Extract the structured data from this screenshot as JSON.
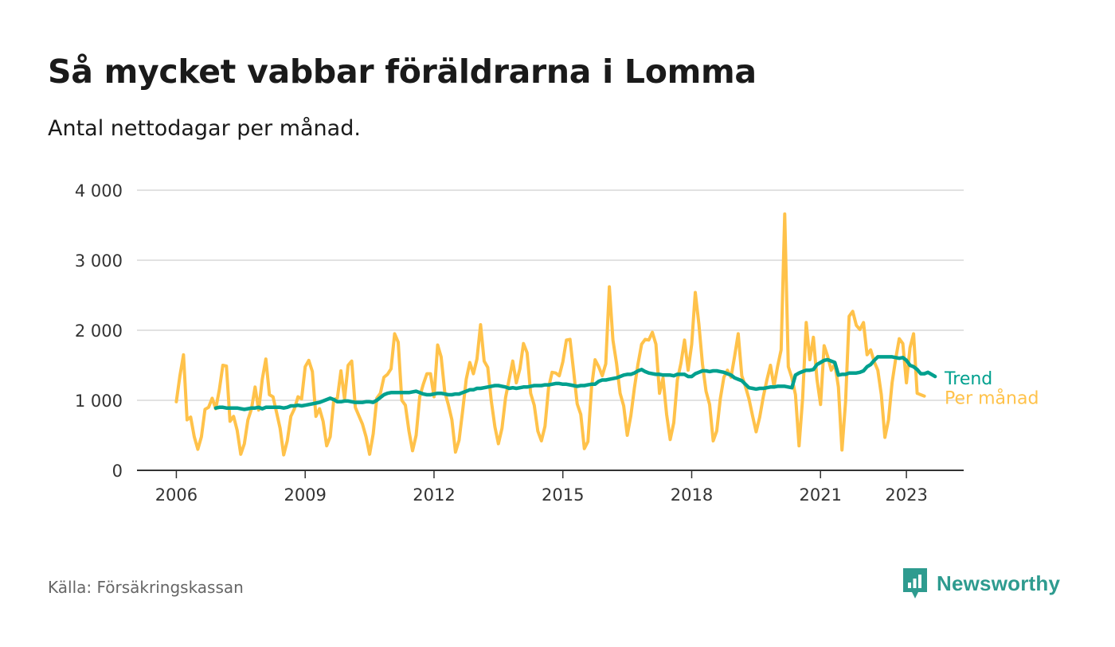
{
  "title": "Så mycket vabbar föräldrarna i Lomma",
  "subtitle": "Antal nettodagar per månad.",
  "source": "Källa: Försäkringskassan",
  "brand": "Newsworthy",
  "colors": {
    "monthly": "#ffc24a",
    "trend": "#00a08e",
    "grid": "#d9d9d9",
    "axis": "#333333",
    "brand": "#2e9b8f"
  },
  "chart_data": {
    "type": "line",
    "title": "Så mycket vabbar föräldrarna i Lomma",
    "xlabel": "",
    "ylabel": "",
    "xlim": [
      "2005-02-01",
      "2024-05-01"
    ],
    "ylim": [
      0,
      4000
    ],
    "y_ticks": [
      {
        "value": 0,
        "label": "0"
      },
      {
        "value": 1000,
        "label": "1 000"
      },
      {
        "value": 2000,
        "label": "2 000"
      },
      {
        "value": 3000,
        "label": "3 000"
      },
      {
        "value": 4000,
        "label": "4 000"
      }
    ],
    "x_ticks": [
      {
        "date": "2006-01-01",
        "label": "2006"
      },
      {
        "date": "2009-01-01",
        "label": "2009"
      },
      {
        "date": "2012-01-01",
        "label": "2012"
      },
      {
        "date": "2015-01-01",
        "label": "2015"
      },
      {
        "date": "2018-01-01",
        "label": "2018"
      },
      {
        "date": "2021-01-01",
        "label": "2021"
      },
      {
        "date": "2023-01-01",
        "label": "2023"
      }
    ],
    "grid": true,
    "series": [
      {
        "name": "Per månad",
        "start": "2006-01",
        "values": [
          980,
          1350,
          1650,
          720,
          760,
          480,
          300,
          480,
          870,
          900,
          1030,
          880,
          1150,
          1500,
          1490,
          700,
          770,
          570,
          230,
          380,
          720,
          880,
          1190,
          860,
          1300,
          1590,
          1080,
          1050,
          830,
          600,
          220,
          420,
          770,
          880,
          1050,
          1020,
          1480,
          1570,
          1410,
          770,
          880,
          700,
          350,
          480,
          1010,
          1030,
          1420,
          1020,
          1500,
          1560,
          900,
          780,
          660,
          480,
          230,
          520,
          1030,
          1100,
          1330,
          1370,
          1450,
          1950,
          1830,
          1000,
          930,
          560,
          280,
          500,
          1050,
          1230,
          1380,
          1380,
          1050,
          1790,
          1620,
          1120,
          940,
          720,
          260,
          430,
          850,
          1300,
          1540,
          1380,
          1590,
          2080,
          1560,
          1470,
          990,
          620,
          380,
          600,
          1040,
          1300,
          1560,
          1250,
          1450,
          1810,
          1680,
          1100,
          930,
          560,
          420,
          630,
          1180,
          1400,
          1390,
          1350,
          1550,
          1860,
          1870,
          1420,
          950,
          800,
          310,
          410,
          1180,
          1580,
          1480,
          1350,
          1520,
          2620,
          1860,
          1530,
          1100,
          920,
          500,
          780,
          1180,
          1520,
          1800,
          1870,
          1860,
          1970,
          1800,
          1100,
          1320,
          800,
          440,
          680,
          1290,
          1530,
          1860,
          1430,
          1800,
          2540,
          2090,
          1520,
          1130,
          940,
          420,
          560,
          1020,
          1330,
          1430,
          1330,
          1630,
          1950,
          1350,
          1200,
          1020,
          780,
          550,
          760,
          1050,
          1290,
          1500,
          1200,
          1480,
          1720,
          3660,
          1480,
          1320,
          1080,
          350,
          1030,
          2110,
          1580,
          1900,
          1300,
          940,
          1780,
          1630,
          1430,
          1520,
          1190,
          290,
          980,
          2200,
          2270,
          2070,
          2010,
          2110,
          1650,
          1720,
          1550,
          1430,
          1080,
          470,
          720,
          1250,
          1590,
          1880,
          1810,
          1250,
          1750,
          1950,
          1100,
          1080,
          1060
        ]
      },
      {
        "name": "Trend",
        "start": "2006-12",
        "values": [
          890,
          900,
          900,
          890,
          890,
          890,
          890,
          880,
          870,
          880,
          890,
          890,
          900,
          880,
          900,
          900,
          900,
          900,
          900,
          890,
          900,
          920,
          920,
          930,
          920,
          930,
          940,
          950,
          960,
          970,
          990,
          1010,
          1030,
          1010,
          980,
          980,
          990,
          990,
          980,
          970,
          970,
          970,
          980,
          980,
          970,
          1000,
          1040,
          1080,
          1100,
          1110,
          1110,
          1110,
          1110,
          1110,
          1110,
          1120,
          1130,
          1110,
          1090,
          1080,
          1080,
          1090,
          1100,
          1100,
          1090,
          1080,
          1080,
          1090,
          1090,
          1110,
          1130,
          1150,
          1150,
          1170,
          1170,
          1180,
          1190,
          1200,
          1210,
          1210,
          1200,
          1190,
          1170,
          1180,
          1170,
          1180,
          1190,
          1190,
          1200,
          1210,
          1210,
          1210,
          1220,
          1220,
          1230,
          1240,
          1240,
          1230,
          1230,
          1220,
          1210,
          1200,
          1210,
          1210,
          1220,
          1230,
          1230,
          1270,
          1290,
          1290,
          1300,
          1310,
          1320,
          1340,
          1360,
          1370,
          1370,
          1390,
          1420,
          1440,
          1410,
          1390,
          1380,
          1370,
          1370,
          1360,
          1360,
          1360,
          1350,
          1370,
          1370,
          1370,
          1340,
          1340,
          1380,
          1400,
          1420,
          1420,
          1410,
          1420,
          1420,
          1410,
          1400,
          1380,
          1360,
          1320,
          1300,
          1280,
          1230,
          1180,
          1170,
          1160,
          1170,
          1170,
          1180,
          1190,
          1190,
          1200,
          1200,
          1200,
          1190,
          1180,
          1360,
          1390,
          1410,
          1430,
          1430,
          1440,
          1510,
          1540,
          1570,
          1580,
          1560,
          1540,
          1360,
          1370,
          1370,
          1390,
          1390,
          1390,
          1400,
          1420,
          1480,
          1510,
          1570,
          1620,
          1620,
          1620,
          1620,
          1620,
          1610,
          1600,
          1610,
          1570,
          1500,
          1480,
          1440,
          1380,
          1380,
          1400,
          1370,
          1340
        ]
      }
    ]
  }
}
